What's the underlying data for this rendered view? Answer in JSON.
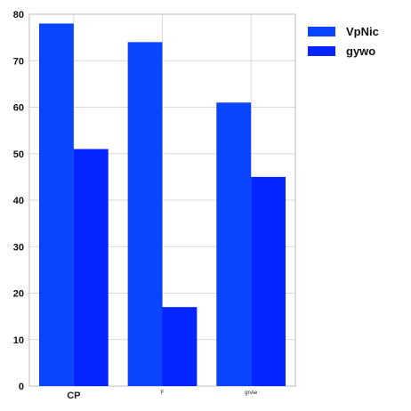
{
  "chart_data": {
    "type": "bar",
    "categories": [
      "CP",
      "F",
      "gnAe"
    ],
    "series": [
      {
        "name": "VpNic",
        "values": [
          78,
          74,
          61
        ],
        "color": "#0a44ff"
      },
      {
        "name": "gywo",
        "values": [
          51,
          17,
          45
        ],
        "color": "#0425ff"
      }
    ],
    "ylim": [
      0,
      80
    ],
    "yticks": [
      0,
      10,
      20,
      30,
      40,
      50,
      60,
      70,
      80
    ],
    "title": "",
    "xlabel": "",
    "ylabel": "",
    "grid": true,
    "legend": "top-right",
    "category_label_sizes": [
      "large",
      "tiny",
      "tiny"
    ]
  }
}
